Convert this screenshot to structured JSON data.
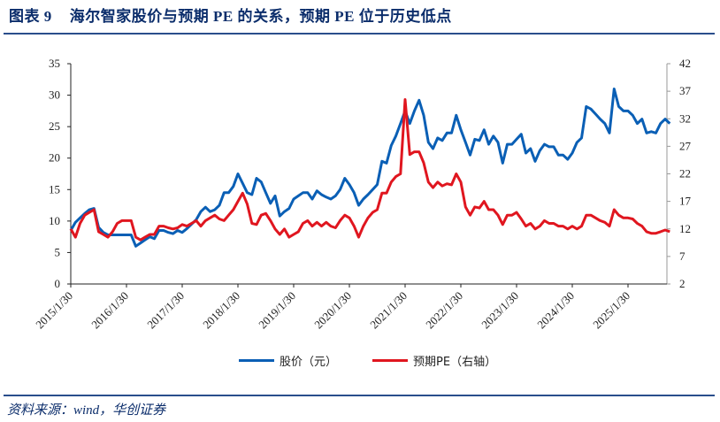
{
  "header": {
    "figure_label": "图表 9",
    "title": "海尔智家股价与预期 PE 的关系，预期 PE 位于历史低点"
  },
  "footer": {
    "source": "资料来源：wind，华创证券"
  },
  "legend": {
    "series1_label": "股价（元）",
    "series2_label": "预期PE（右轴）"
  },
  "colors": {
    "price": "#0a5fb5",
    "pe": "#e0161f",
    "title": "#0b2d6b",
    "rule": "#2a4e8c"
  },
  "chart_data": {
    "type": "line",
    "title": "海尔智家股价与预期 PE 的关系，预期 PE 位于历史低点",
    "xlabel": "",
    "ylabel": "股价（元）",
    "y2label": "预期PE（右轴）",
    "ylim": [
      0,
      35
    ],
    "y2lim": [
      2,
      42
    ],
    "yticks": [
      0,
      5,
      10,
      15,
      20,
      25,
      30,
      35
    ],
    "y2ticks": [
      2,
      7,
      12,
      17,
      22,
      27,
      32,
      37,
      42
    ],
    "xtick_labels": [
      "2015/1/30",
      "2016/1/30",
      "2017/1/30",
      "2018/1/30",
      "2019/1/30",
      "2020/1/30",
      "2021/1/30",
      "2022/1/30",
      "2023/1/30",
      "2024/1/30",
      "2025/1/30"
    ],
    "x_start": "2015/1/30",
    "frequency": "monthly",
    "grid": false,
    "legend_position": "bottom",
    "series": [
      {
        "name": "股价（元）",
        "axis": "left",
        "values": [
          8.5,
          9.8,
          10.5,
          11.2,
          11.8,
          12.0,
          9.0,
          8.2,
          7.8,
          7.8,
          7.8,
          7.8,
          7.8,
          7.8,
          6.0,
          6.5,
          7.0,
          7.5,
          7.2,
          8.5,
          8.5,
          8.2,
          8.0,
          8.5,
          8.2,
          8.8,
          9.5,
          10.2,
          11.5,
          12.2,
          11.5,
          11.8,
          12.5,
          14.5,
          14.5,
          15.5,
          17.5,
          16.0,
          14.5,
          14.2,
          16.8,
          16.2,
          14.5,
          12.8,
          14.0,
          10.8,
          11.5,
          12.0,
          13.5,
          14.0,
          14.5,
          14.5,
          13.5,
          14.8,
          14.2,
          13.8,
          13.5,
          14.0,
          15.0,
          16.8,
          15.8,
          14.5,
          12.5,
          13.5,
          14.2,
          15.0,
          15.8,
          19.5,
          19.2,
          22.0,
          23.5,
          25.5,
          27.5,
          25.5,
          27.5,
          29.2,
          26.8,
          22.5,
          21.5,
          23.2,
          22.8,
          24.0,
          24.0,
          26.8,
          24.5,
          22.5,
          20.5,
          23.0,
          22.8,
          24.5,
          22.2,
          23.5,
          22.5,
          19.2,
          22.2,
          22.2,
          23.0,
          23.8,
          20.8,
          21.5,
          19.5,
          21.2,
          22.2,
          21.8,
          21.8,
          20.5,
          20.5,
          19.8,
          20.8,
          22.5,
          23.2,
          28.2,
          27.8,
          27.0,
          26.2,
          25.5,
          24.0,
          31.0,
          28.2,
          27.5,
          27.5,
          26.8,
          25.5,
          26.2,
          24.0,
          24.2,
          24.0,
          25.5,
          26.2,
          25.5
        ]
      },
      {
        "name": "预期PE（右轴）",
        "axis": "right",
        "values": [
          12,
          10.5,
          13,
          14.5,
          15,
          15.5,
          11.5,
          11,
          10.5,
          11.5,
          13,
          13.5,
          13.5,
          13.5,
          10.5,
          10,
          10.5,
          11,
          11,
          12.5,
          12.5,
          12.2,
          12,
          12.2,
          12.8,
          12.5,
          13,
          13.5,
          12.5,
          13.5,
          14,
          14.5,
          13.8,
          13.5,
          14.5,
          15.5,
          17,
          18.5,
          16.5,
          13,
          12.8,
          14.5,
          14.8,
          13.5,
          12,
          11,
          12,
          10.5,
          11,
          11.5,
          13,
          13.5,
          12.5,
          13.2,
          12.5,
          13.2,
          12.5,
          12.2,
          13.5,
          14.5,
          14,
          12.5,
          10.5,
          12.5,
          14,
          15,
          15.5,
          18.5,
          18.5,
          20.5,
          21.5,
          22,
          35.5,
          25.5,
          26,
          26,
          24,
          20.5,
          19.5,
          20.5,
          19.8,
          20.2,
          20,
          22,
          20.5,
          16,
          14.5,
          16,
          15.8,
          17,
          15.5,
          15.5,
          14.5,
          12.8,
          14.5,
          14.5,
          15,
          13.8,
          12.5,
          13,
          12,
          12.5,
          13.5,
          13,
          13,
          12.5,
          12.5,
          12,
          12.5,
          12,
          12.5,
          14.5,
          14.5,
          14,
          13.5,
          13.2,
          12.5,
          15.5,
          14.5,
          14,
          14,
          13.8,
          13,
          12.5,
          11.5,
          11.2,
          11.2,
          11.5,
          11.8,
          11.5
        ]
      }
    ]
  }
}
